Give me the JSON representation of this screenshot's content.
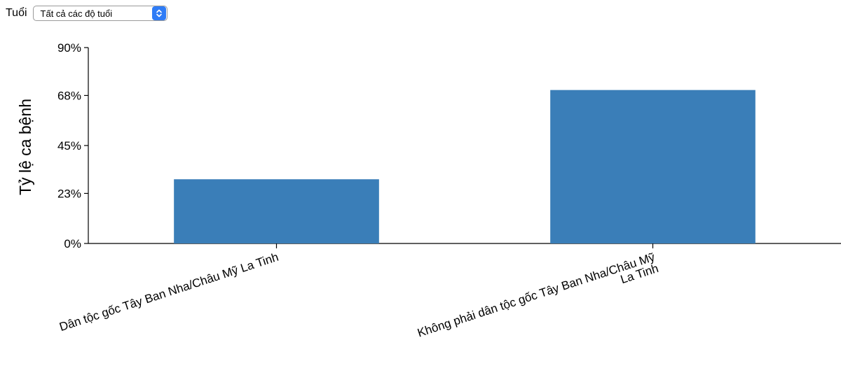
{
  "filter": {
    "label": "Tuổi",
    "selected": "Tất cả các độ tuổi"
  },
  "chart_data": {
    "type": "bar",
    "title": "",
    "xlabel": "",
    "ylabel": "Tỷ lệ ca bệnh",
    "ylim": [
      0,
      90
    ],
    "y_ticks": [
      0,
      23,
      45,
      68,
      90
    ],
    "y_tick_labels": [
      "0%",
      "23%",
      "45%",
      "68%",
      "90%"
    ],
    "categories": [
      "Dân tộc gốc Tây Ban Nha/Châu Mỹ La Tinh",
      "Không phải dân tộc gốc Tây Ban Nha/Châu Mỹ La Tinh"
    ],
    "category_label_lines": [
      [
        "Dân tộc gốc Tây Ban Nha/Châu Mỹ La Tinh"
      ],
      [
        "Không phải dân tộc gốc Tây Ban Nha/Châu Mỹ",
        "La Tinh"
      ]
    ],
    "values": [
      29.5,
      70.5
    ],
    "bar_color": "#3a7eb8",
    "grid": false
  }
}
